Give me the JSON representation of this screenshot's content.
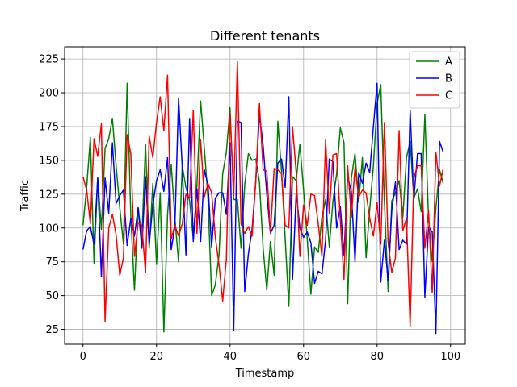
{
  "chart_data": {
    "type": "line",
    "title": "Different tenants",
    "xlabel": "Timestamp",
    "ylabel": "Traffic",
    "xlim": [
      -5,
      104
    ],
    "ylim": [
      14,
      234
    ],
    "xticks": [
      0,
      20,
      40,
      60,
      80,
      100
    ],
    "yticks": [
      25,
      50,
      75,
      100,
      125,
      150,
      175,
      200,
      225
    ],
    "grid": true,
    "legend_placement": "top-right",
    "series": [
      {
        "name": "A",
        "color": "#008000",
        "x": [
          0,
          1,
          2,
          3,
          4,
          5,
          6,
          7,
          8,
          9,
          10,
          11,
          12,
          13,
          14,
          15,
          16,
          17,
          18,
          19,
          20,
          21,
          22,
          23,
          24,
          25,
          26,
          27,
          28,
          29,
          30,
          31,
          32,
          33,
          34,
          35,
          36,
          37,
          38,
          39,
          40,
          41,
          42,
          43,
          44,
          45,
          46,
          47,
          48,
          49,
          50,
          51,
          52,
          53,
          54,
          55,
          56,
          57,
          58,
          59,
          60,
          61,
          62,
          63,
          64,
          65,
          66,
          67,
          68,
          69,
          70,
          71,
          72,
          73,
          74,
          75,
          76,
          77,
          78,
          79,
          80,
          81,
          82,
          83,
          84,
          85,
          86,
          87,
          88,
          89,
          90,
          91,
          92,
          93,
          94,
          95,
          96,
          97,
          98
        ],
        "values": [
          102,
          130,
          167,
          74,
          137,
          99,
          159,
          166,
          181,
          146,
          115,
          88,
          207,
          109,
          54,
          115,
          92,
          162,
          85,
          133,
          73,
          126,
          23,
          110,
          147,
          107,
          75,
          146,
          130,
          120,
          92,
          132,
          194,
          159,
          122,
          50,
          58,
          80,
          140,
          156,
          189,
          121,
          121,
          85,
          132,
          155,
          150,
          151,
          134,
          85,
          54,
          90,
          65,
          179,
          142,
          92,
          42,
          138,
          135,
          162,
          128,
          92,
          51,
          86,
          82,
          108,
          121,
          86,
          120,
          140,
          174,
          163,
          44,
          137,
          155,
          119,
          152,
          78,
          114,
          146,
          192,
          206,
          119,
          53,
          120,
          126,
          135,
          108,
          152,
          164,
          122,
          129,
          112,
          184,
          107,
          75,
          115,
          143,
          133
        ]
      },
      {
        "name": "B",
        "color": "#0000ff",
        "x": [
          0,
          1,
          2,
          3,
          4,
          5,
          6,
          7,
          8,
          9,
          10,
          11,
          12,
          13,
          14,
          15,
          16,
          17,
          18,
          19,
          20,
          21,
          22,
          23,
          24,
          25,
          26,
          27,
          28,
          29,
          30,
          31,
          32,
          33,
          34,
          35,
          36,
          37,
          38,
          39,
          40,
          41,
          42,
          43,
          44,
          45,
          46,
          47,
          48,
          49,
          50,
          51,
          52,
          53,
          54,
          55,
          56,
          57,
          58,
          59,
          60,
          61,
          62,
          63,
          64,
          65,
          66,
          67,
          68,
          69,
          70,
          71,
          72,
          73,
          74,
          75,
          76,
          77,
          78,
          79,
          80,
          81,
          82,
          83,
          84,
          85,
          86,
          87,
          88,
          89,
          90,
          91,
          92,
          93,
          94,
          95,
          96,
          97,
          98
        ],
        "values": [
          84,
          98,
          101,
          88,
          137,
          64,
          137,
          111,
          163,
          118,
          124,
          128,
          87,
          107,
          94,
          115,
          85,
          138,
          88,
          117,
          135,
          143,
          127,
          152,
          84,
          101,
          196,
          145,
          80,
          181,
          90,
          129,
          90,
          143,
          132,
          86,
          122,
          126,
          126,
          110,
          163,
          24,
          179,
          178,
          53,
          81,
          99,
          134,
          184,
          161,
          125,
          96,
          102,
          148,
          151,
          130,
          197,
          62,
          126,
          100,
          93,
          97,
          89,
          59,
          68,
          66,
          91,
          151,
          149,
          100,
          116,
          80,
          138,
          127,
          75,
          141,
          133,
          148,
          141,
          175,
          207,
          60,
          91,
          61,
          113,
          134,
          84,
          91,
          88,
          187,
          121,
          155,
          155,
          49,
          101,
          97,
          22,
          164,
          156
        ]
      },
      {
        "name": "C",
        "color": "#ff0000",
        "x": [
          0,
          1,
          2,
          3,
          4,
          5,
          6,
          7,
          8,
          9,
          10,
          11,
          12,
          13,
          14,
          15,
          16,
          17,
          18,
          19,
          20,
          21,
          22,
          23,
          24,
          25,
          26,
          27,
          28,
          29,
          30,
          31,
          32,
          33,
          34,
          35,
          36,
          37,
          38,
          39,
          40,
          41,
          42,
          43,
          44,
          45,
          46,
          47,
          48,
          49,
          50,
          51,
          52,
          53,
          54,
          55,
          56,
          57,
          58,
          59,
          60,
          61,
          62,
          63,
          64,
          65,
          66,
          67,
          68,
          69,
          70,
          71,
          72,
          73,
          74,
          75,
          76,
          77,
          78,
          79,
          80,
          81,
          82,
          83,
          84,
          85,
          86,
          87,
          88,
          89,
          90,
          91,
          92,
          93,
          94,
          95,
          96,
          97,
          98
        ],
        "values": [
          138,
          128,
          103,
          166,
          153,
          177,
          31,
          100,
          110,
          95,
          65,
          78,
          169,
          155,
          79,
          104,
          102,
          67,
          168,
          152,
          178,
          197,
          172,
          213,
          92,
          102,
          94,
          103,
          125,
          122,
          187,
          96,
          165,
          123,
          133,
          126,
          93,
          73,
          46,
          77,
          185,
          124,
          223,
          103,
          96,
          101,
          94,
          135,
          192,
          143,
          142,
          96,
          144,
          143,
          140,
          102,
          100,
          175,
          141,
          79,
          117,
          102,
          125,
          124,
          103,
          79,
          165,
          111,
          154,
          155,
          106,
          62,
          146,
          108,
          145,
          123,
          128,
          126,
          107,
          94,
          119,
          88,
          178,
          89,
          67,
          78,
          172,
          98,
          107,
          27,
          137,
          146,
          146,
          85,
          113,
          52,
          156,
          131,
          144
        ]
      }
    ]
  }
}
